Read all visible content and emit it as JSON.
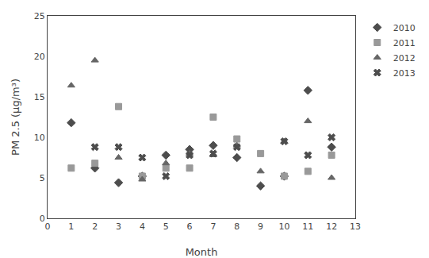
{
  "chart_data": {
    "type": "scatter",
    "xlabel": "Month",
    "ylabel": "PM 2.5 (μg/m³)",
    "xlim": [
      0,
      13
    ],
    "ylim": [
      0,
      25
    ],
    "xticks": [
      0,
      1,
      2,
      3,
      4,
      5,
      6,
      7,
      8,
      9,
      10,
      11,
      12,
      13
    ],
    "yticks": [
      0,
      5,
      10,
      15,
      20,
      25
    ],
    "grid": false,
    "legend": "upper right",
    "series": [
      {
        "name": "2010",
        "color": "#4d4d4d",
        "marker": "diamond",
        "x": [
          1,
          2,
          3,
          4,
          5,
          6,
          7,
          8,
          9,
          10,
          11,
          12
        ],
        "values": [
          11.8,
          6.2,
          4.4,
          5.2,
          7.8,
          8.5,
          9.0,
          7.5,
          4.0,
          5.2,
          15.8,
          8.8
        ]
      },
      {
        "name": "2011",
        "color": "#999999",
        "marker": "square",
        "x": [
          1,
          2,
          3,
          4,
          5,
          6,
          7,
          8,
          9,
          10,
          11,
          12
        ],
        "values": [
          6.2,
          6.8,
          13.8,
          5.2,
          6.2,
          6.2,
          12.5,
          9.8,
          8.0,
          5.2,
          5.8,
          7.8
        ]
      },
      {
        "name": "2012",
        "color": "#666666",
        "marker": "triangle-up",
        "x": [
          1,
          2,
          3,
          4,
          5,
          6,
          7,
          8,
          9,
          10,
          11,
          12
        ],
        "values": [
          16.4,
          19.5,
          7.5,
          4.8,
          6.8,
          8.0,
          7.8,
          9.0,
          5.8,
          9.5,
          12.0,
          5.0
        ]
      },
      {
        "name": "2013",
        "color": "#4d4d4d",
        "marker": "x",
        "x": [
          2,
          3,
          4,
          5,
          6,
          7,
          8,
          10,
          11,
          12
        ],
        "values": [
          8.8,
          8.8,
          7.5,
          5.2,
          7.8,
          8.0,
          8.8,
          9.5,
          7.8,
          10.0
        ]
      }
    ]
  }
}
